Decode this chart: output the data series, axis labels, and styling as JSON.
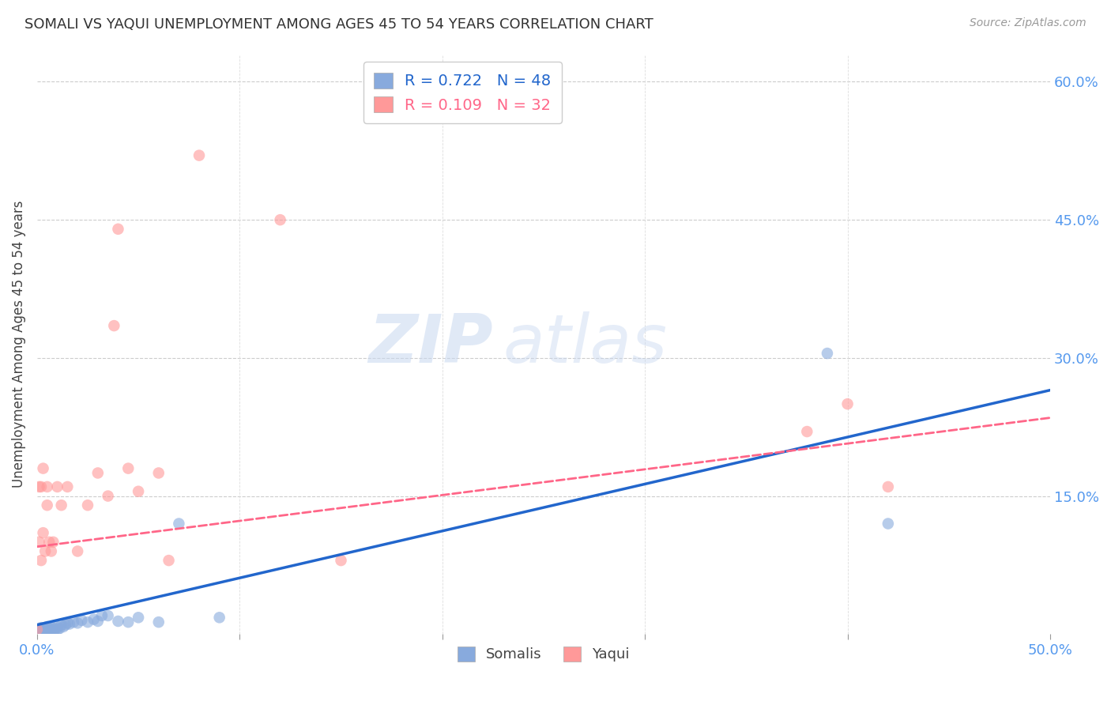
{
  "title": "SOMALI VS YAQUI UNEMPLOYMENT AMONG AGES 45 TO 54 YEARS CORRELATION CHART",
  "source": "Source: ZipAtlas.com",
  "ylabel": "Unemployment Among Ages 45 to 54 years",
  "xlim": [
    0.0,
    0.5
  ],
  "ylim": [
    0.0,
    0.63
  ],
  "xticks": [
    0.0,
    0.1,
    0.2,
    0.3,
    0.4,
    0.5
  ],
  "xtick_labels_show": [
    "0.0%",
    "",
    "",
    "",
    "",
    "50.0%"
  ],
  "yticks_right": [
    0.15,
    0.3,
    0.45,
    0.6
  ],
  "ytick_labels_right": [
    "15.0%",
    "30.0%",
    "45.0%",
    "60.0%"
  ],
  "somali_R": 0.722,
  "somali_N": 48,
  "yaqui_R": 0.109,
  "yaqui_N": 32,
  "somali_color": "#88AADD",
  "yaqui_color": "#FF9999",
  "somali_line_color": "#2266CC",
  "yaqui_line_color": "#FF6688",
  "background_color": "#ffffff",
  "watermark_zip": "ZIP",
  "watermark_atlas": "atlas",
  "somali_x": [
    0.0,
    0.0,
    0.0,
    0.001,
    0.001,
    0.001,
    0.002,
    0.002,
    0.002,
    0.003,
    0.003,
    0.003,
    0.004,
    0.004,
    0.005,
    0.005,
    0.005,
    0.006,
    0.006,
    0.007,
    0.007,
    0.008,
    0.008,
    0.009,
    0.01,
    0.01,
    0.011,
    0.012,
    0.013,
    0.014,
    0.015,
    0.016,
    0.018,
    0.02,
    0.022,
    0.025,
    0.028,
    0.03,
    0.032,
    0.035,
    0.04,
    0.045,
    0.05,
    0.06,
    0.07,
    0.09,
    0.39,
    0.42
  ],
  "somali_y": [
    0.0,
    0.003,
    0.005,
    0.0,
    0.002,
    0.005,
    0.002,
    0.004,
    0.007,
    0.002,
    0.004,
    0.006,
    0.003,
    0.007,
    0.002,
    0.005,
    0.008,
    0.003,
    0.006,
    0.004,
    0.007,
    0.003,
    0.007,
    0.005,
    0.005,
    0.008,
    0.006,
    0.01,
    0.008,
    0.01,
    0.012,
    0.011,
    0.013,
    0.012,
    0.015,
    0.013,
    0.016,
    0.014,
    0.02,
    0.02,
    0.014,
    0.013,
    0.018,
    0.013,
    0.12,
    0.018,
    0.305,
    0.12
  ],
  "yaqui_x": [
    0.0,
    0.001,
    0.001,
    0.002,
    0.002,
    0.003,
    0.003,
    0.004,
    0.005,
    0.005,
    0.006,
    0.007,
    0.008,
    0.01,
    0.012,
    0.015,
    0.02,
    0.025,
    0.03,
    0.035,
    0.038,
    0.04,
    0.045,
    0.05,
    0.06,
    0.065,
    0.08,
    0.12,
    0.15,
    0.38,
    0.4,
    0.42
  ],
  "yaqui_y": [
    0.005,
    0.1,
    0.16,
    0.08,
    0.16,
    0.11,
    0.18,
    0.09,
    0.16,
    0.14,
    0.1,
    0.09,
    0.1,
    0.16,
    0.14,
    0.16,
    0.09,
    0.14,
    0.175,
    0.15,
    0.335,
    0.44,
    0.18,
    0.155,
    0.175,
    0.08,
    0.52,
    0.45,
    0.08,
    0.22,
    0.25,
    0.16
  ],
  "somali_line_x0": 0.0,
  "somali_line_y0": 0.01,
  "somali_line_x1": 0.5,
  "somali_line_y1": 0.265,
  "yaqui_line_x0": 0.0,
  "yaqui_line_y0": 0.095,
  "yaqui_line_x1": 0.5,
  "yaqui_line_y1": 0.235
}
